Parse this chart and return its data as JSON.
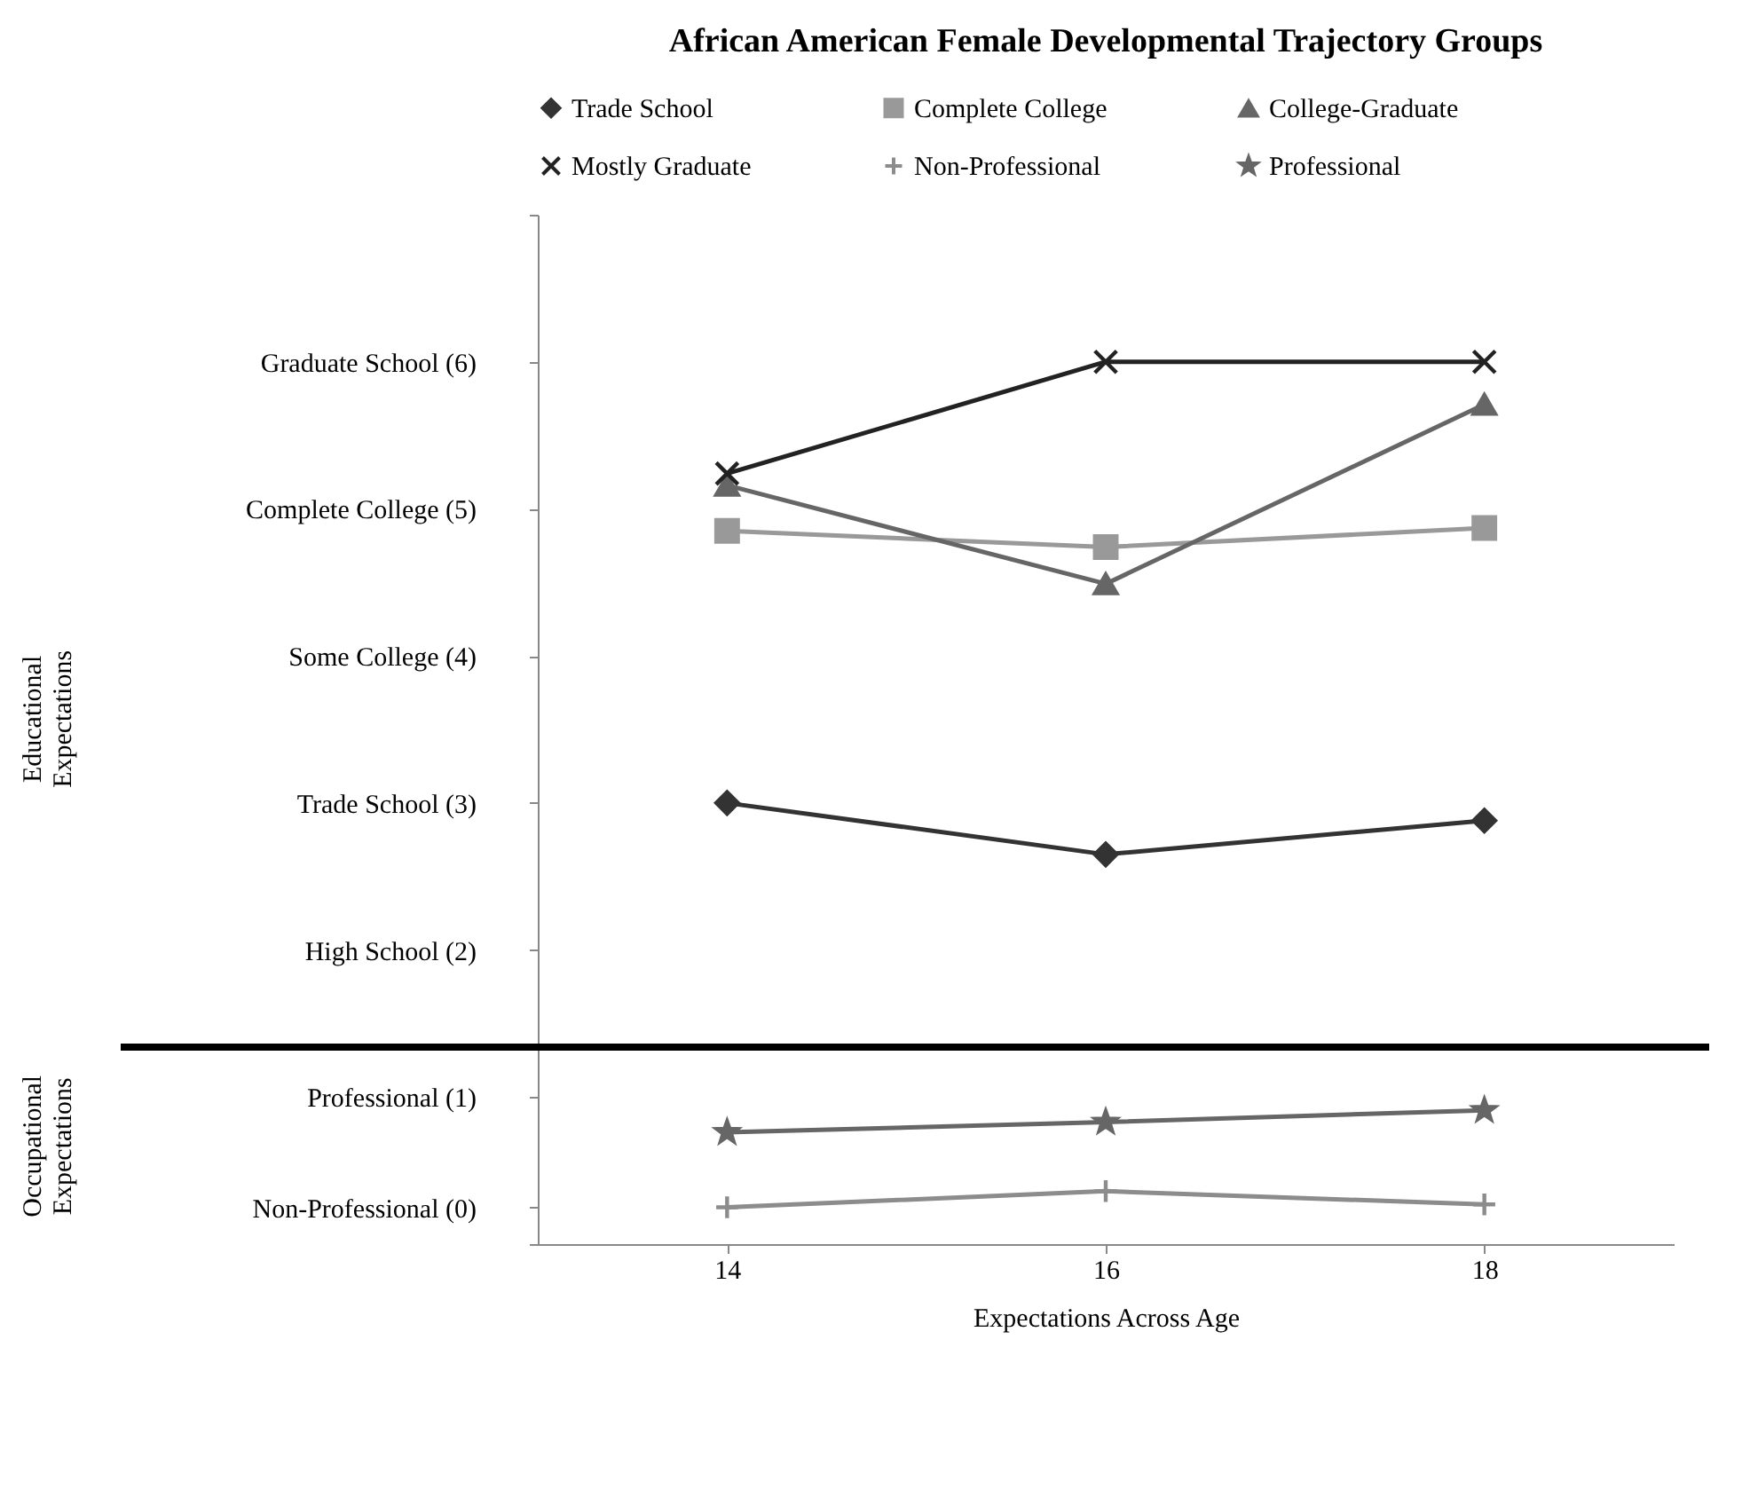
{
  "chart_data": {
    "type": "line",
    "title": "African American Female Developmental Trajectory Groups",
    "xlabel": "Expectations Across Age",
    "annotations": [
      "Educational Expectations",
      "Occupational Expectations"
    ],
    "x": [
      14,
      16,
      18
    ],
    "xlim": [
      13,
      19
    ],
    "xticks": [
      14,
      16,
      18
    ],
    "ylim": [
      0,
      7
    ],
    "yticks": [
      {
        "value": 0,
        "label": null
      },
      {
        "value": 0.25,
        "label": "Non-Professional (0)"
      },
      {
        "value": 1,
        "label": "Professional (1)"
      },
      {
        "value": 2,
        "label": "High School (2)"
      },
      {
        "value": 3,
        "label": "Trade School (3)"
      },
      {
        "value": 4,
        "label": "Some College (4)"
      },
      {
        "value": 5,
        "label": "Complete College (5)"
      },
      {
        "value": 6,
        "label": "Graduate School (6)"
      },
      {
        "value": 7,
        "label": null
      }
    ],
    "ref_lines": [
      {
        "axis": "y",
        "value": 1.34,
        "color": "#000000"
      }
    ],
    "grid": false,
    "legend": "top",
    "line_style": "solid",
    "series": [
      {
        "name": "Trade School",
        "color": "#333333",
        "marker": "diamond",
        "values": [
          3.0,
          2.65,
          2.88
        ]
      },
      {
        "name": "Complete College",
        "color": "#999999",
        "marker": "square",
        "values": [
          4.85,
          4.74,
          4.87
        ]
      },
      {
        "name": "College-Graduate",
        "color": "#666666",
        "marker": "triangle",
        "values": [
          5.16,
          4.49,
          5.71
        ]
      },
      {
        "name": "Mostly Graduate",
        "color": "#222222",
        "marker": "cross",
        "values": [
          5.24,
          6.0,
          6.0
        ]
      },
      {
        "name": "Non-Professional",
        "color": "#8c8c8c",
        "marker": "plus",
        "values": [
          0.25,
          0.36,
          0.27
        ]
      },
      {
        "name": "Professional",
        "color": "#666666",
        "marker": "star",
        "values": [
          0.76,
          0.83,
          0.91
        ]
      }
    ]
  }
}
